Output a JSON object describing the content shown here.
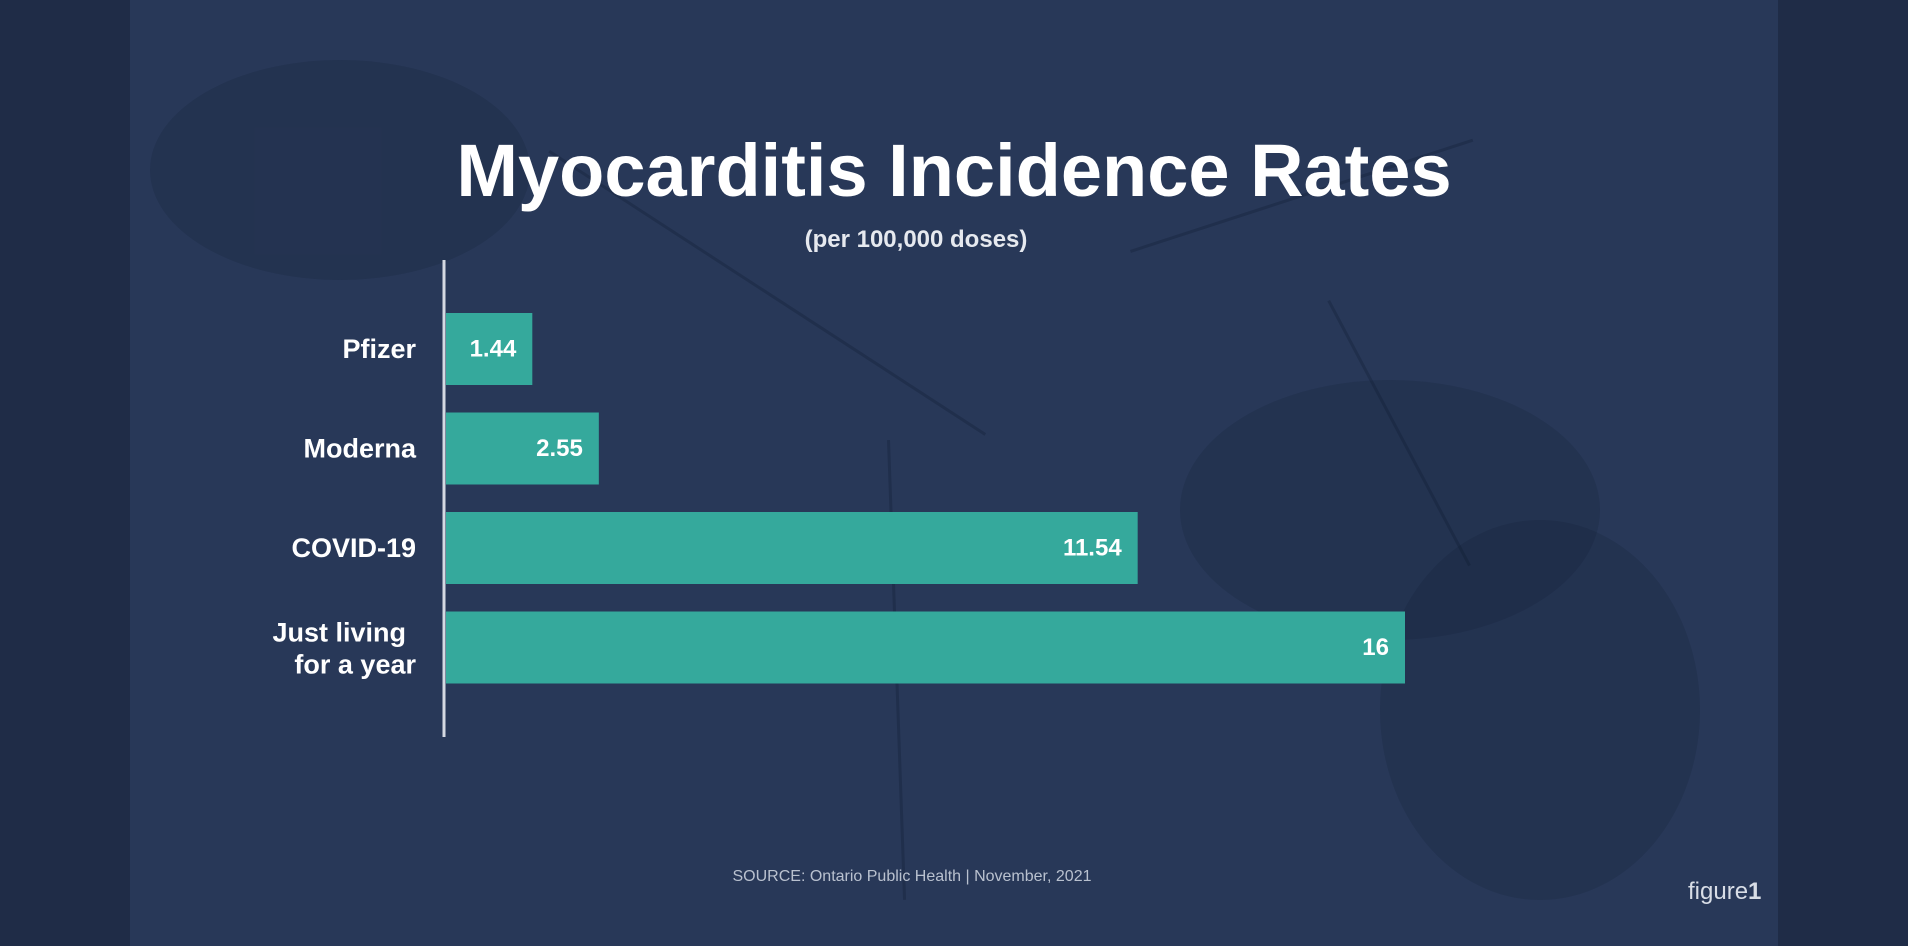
{
  "chart_data": {
    "type": "bar",
    "orientation": "horizontal",
    "title": "Myocarditis Incidence Rates",
    "subtitle": "(per 100,000 doses)",
    "categories": [
      "Pfizer",
      "Moderna",
      "COVID-19",
      "Just living for a year"
    ],
    "values": [
      1.44,
      2.55,
      11.54,
      16
    ],
    "value_labels": [
      "1.44",
      "2.55",
      "11.54",
      "16"
    ],
    "xlim": [
      0,
      16
    ],
    "grid": false,
    "legend": "none",
    "bar_color": "#35a99c"
  },
  "source": "SOURCE: Ontario Public Health | November, 2021",
  "brand": {
    "word": "figure",
    "digit": "1"
  },
  "colors": {
    "background": "#283858",
    "bar": "#35a99c",
    "text": "#ffffff"
  }
}
